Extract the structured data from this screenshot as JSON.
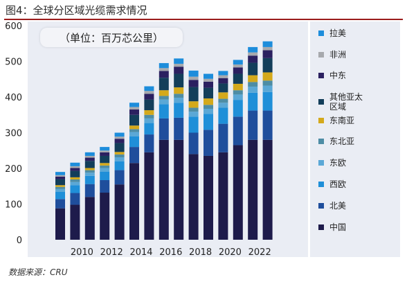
{
  "figure": {
    "title": "图4：全球分区域光缆需求情况",
    "unit_note": "（单位：百万芯公里）",
    "source": "数据来源：CRU"
  },
  "chart_data": {
    "type": "bar",
    "stacked": true,
    "categories": [
      "2009",
      "2010",
      "2011",
      "2012",
      "2013",
      "2014",
      "2015",
      "2016",
      "2017",
      "2018",
      "2019",
      "2020",
      "2021",
      "2022",
      "2023"
    ],
    "x_tick_labels": [
      "2010",
      "2012",
      "2014",
      "2016",
      "2018",
      "2020",
      "2022"
    ],
    "y_ticks": [
      0,
      100,
      200,
      300,
      400,
      500,
      600
    ],
    "ylim": [
      0,
      600
    ],
    "grid": false,
    "legend_position": "right",
    "series": [
      {
        "name": "中国",
        "color": "#1e1b4b",
        "values": [
          88,
          98,
          120,
          132,
          155,
          215,
          245,
          280,
          280,
          240,
          235,
          245,
          265,
          280,
          280
        ]
      },
      {
        "name": "北美",
        "color": "#1f4e9c",
        "values": [
          26,
          33,
          36,
          35,
          40,
          45,
          50,
          60,
          62,
          60,
          73,
          80,
          80,
          82,
          82
        ]
      },
      {
        "name": "西欧",
        "color": "#1f8fd8",
        "values": [
          20,
          22,
          23,
          24,
          25,
          30,
          32,
          40,
          42,
          45,
          45,
          45,
          47,
          50,
          52
        ]
      },
      {
        "name": "东欧",
        "color": "#5ba8d6",
        "values": [
          8,
          9,
          9,
          10,
          11,
          12,
          13,
          13,
          14,
          14,
          14,
          14,
          15,
          17,
          18
        ]
      },
      {
        "name": "东北亚",
        "color": "#4e8da5",
        "values": [
          6,
          7,
          7,
          7,
          8,
          8,
          10,
          10,
          11,
          11,
          11,
          11,
          12,
          13,
          14
        ]
      },
      {
        "name": "东南亚",
        "color": "#d4a91b",
        "values": [
          5,
          6,
          6,
          7,
          7,
          10,
          13,
          16,
          18,
          18,
          18,
          18,
          18,
          19,
          23
        ]
      },
      {
        "name": "其他亚太区域",
        "color": "#133e5a",
        "values": [
          17,
          18,
          20,
          20,
          25,
          30,
          30,
          35,
          38,
          40,
          30,
          25,
          28,
          35,
          40
        ]
      },
      {
        "name": "中东",
        "color": "#2b2060",
        "values": [
          7,
          8,
          9,
          10,
          12,
          15,
          16,
          19,
          20,
          20,
          17,
          15,
          18,
          20,
          22
        ]
      },
      {
        "name": "非洲",
        "color": "#a7a9ad",
        "values": [
          4,
          5,
          5,
          5,
          6,
          7,
          8,
          8,
          8,
          9,
          8,
          8,
          8,
          9,
          9
        ]
      },
      {
        "name": "拉美",
        "color": "#1d8ddb",
        "values": [
          9,
          10,
          10,
          10,
          11,
          12,
          13,
          14,
          15,
          17,
          14,
          12,
          13,
          15,
          16
        ]
      }
    ]
  },
  "legend_order": [
    "拉美",
    "非洲",
    "中东",
    "其他亚太区域",
    "东南亚",
    "东北亚",
    "东欧",
    "西欧",
    "北美",
    "中国"
  ],
  "legend_labels": {
    "拉美": "拉美",
    "非洲": "非洲",
    "中东": "中东",
    "其他亚太区域": [
      "其他亚太",
      "区域"
    ],
    "东南亚": "东南亚",
    "东北亚": "东北亚",
    "东欧": "东欧",
    "西欧": "西欧",
    "北美": "北美",
    "中国": "中国"
  }
}
